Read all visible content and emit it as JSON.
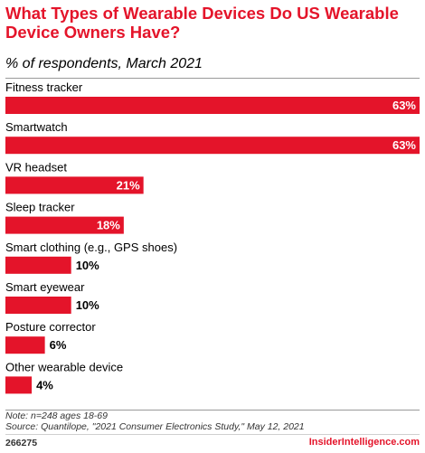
{
  "title": "What Types of Wearable Devices Do US Wearable Device Owners Have?",
  "subtitle": "% of respondents, March 2021",
  "chart_data": {
    "type": "bar",
    "orientation": "horizontal",
    "categories": [
      "Fitness tracker",
      "Smartwatch",
      "VR headset",
      "Sleep tracker",
      "Smart clothing (e.g., GPS shoes)",
      "Smart eyewear",
      "Posture corrector",
      "Other wearable device"
    ],
    "values": [
      63,
      63,
      21,
      18,
      10,
      10,
      6,
      4
    ],
    "value_labels": [
      "63%",
      "63%",
      "21%",
      "18%",
      "10%",
      "10%",
      "6%",
      "4%"
    ],
    "unit": "%",
    "xlim": [
      0,
      63
    ],
    "grid": false,
    "legend": "none",
    "bar_color": "#e4142a"
  },
  "footer": {
    "note": "Note: n=248 ages 18-69",
    "source": "Source: Quantilope, \"2021 Consumer Electronics Study,\" May 12, 2021",
    "chart_id": "266275",
    "brand": "InsiderIntelligence.com"
  }
}
